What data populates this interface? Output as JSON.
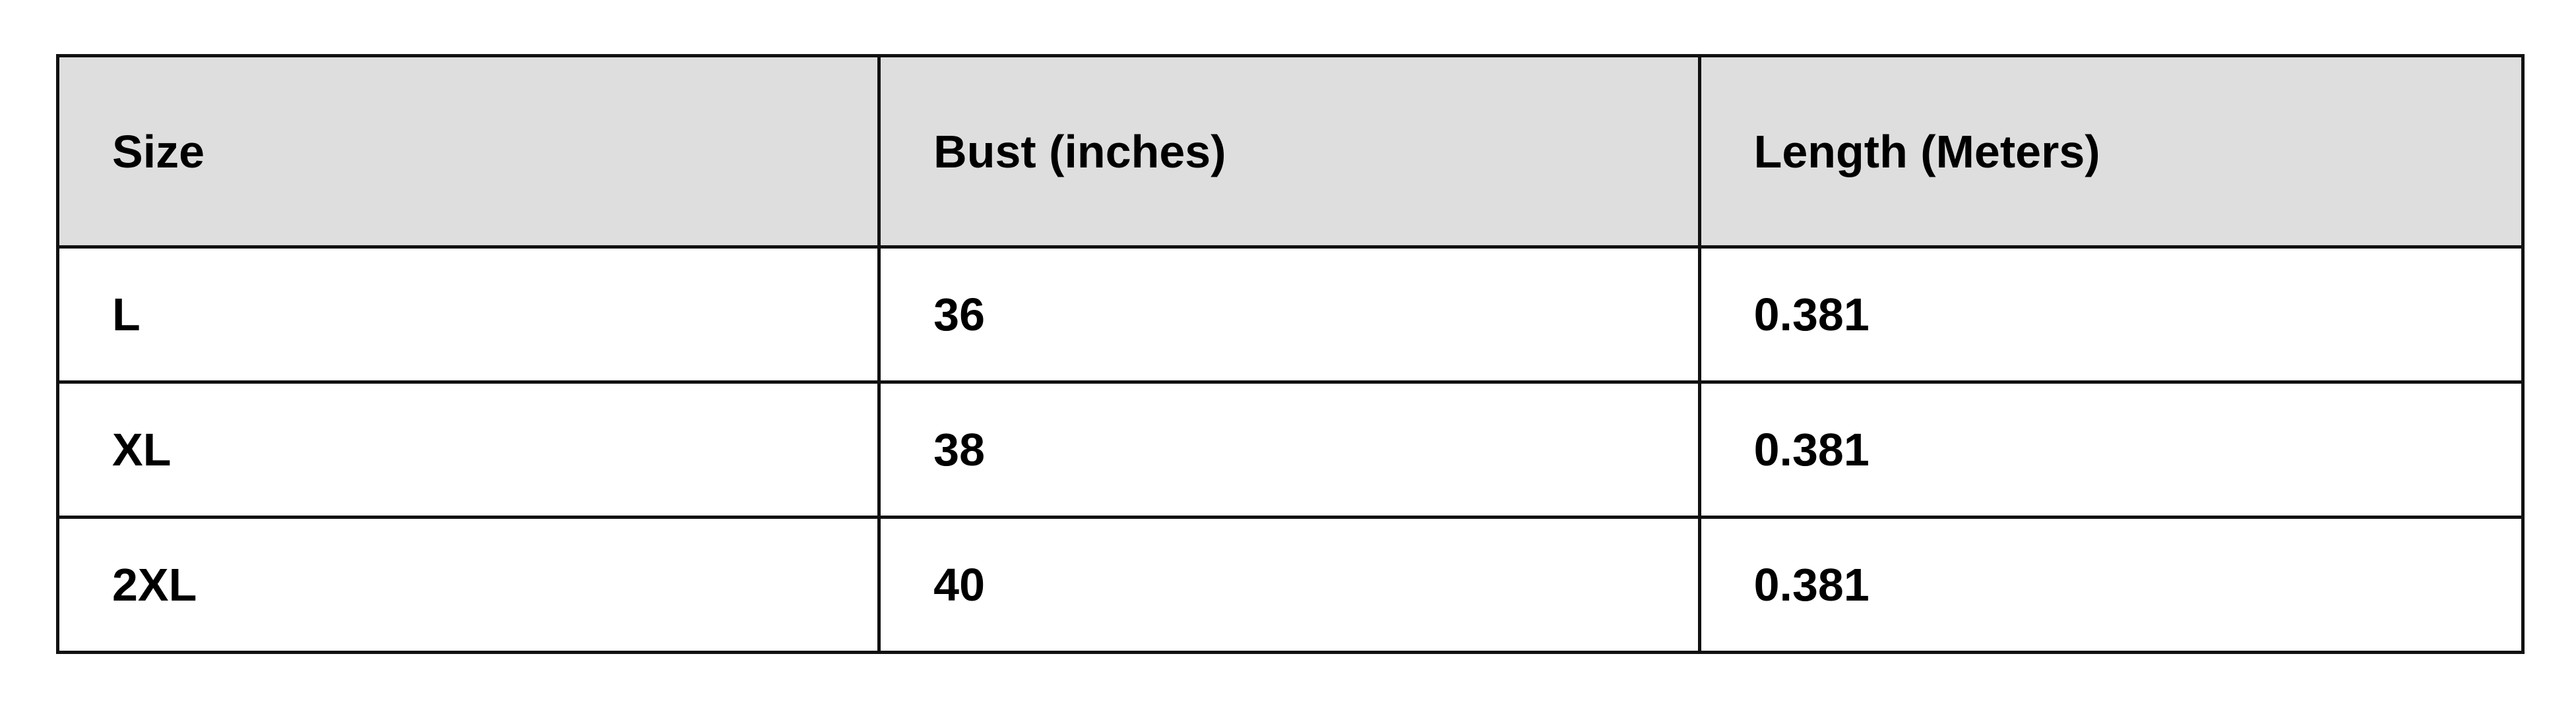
{
  "table": {
    "headers": [
      "Size",
      "Bust (inches)",
      "Length (Meters)"
    ],
    "rows": [
      [
        "L",
        "36",
        "0.381"
      ],
      [
        "XL",
        "38",
        "0.381"
      ],
      [
        "2XL",
        "40",
        "0.381"
      ]
    ]
  },
  "colors": {
    "header_bg": "#dedede",
    "border": "#111111"
  }
}
